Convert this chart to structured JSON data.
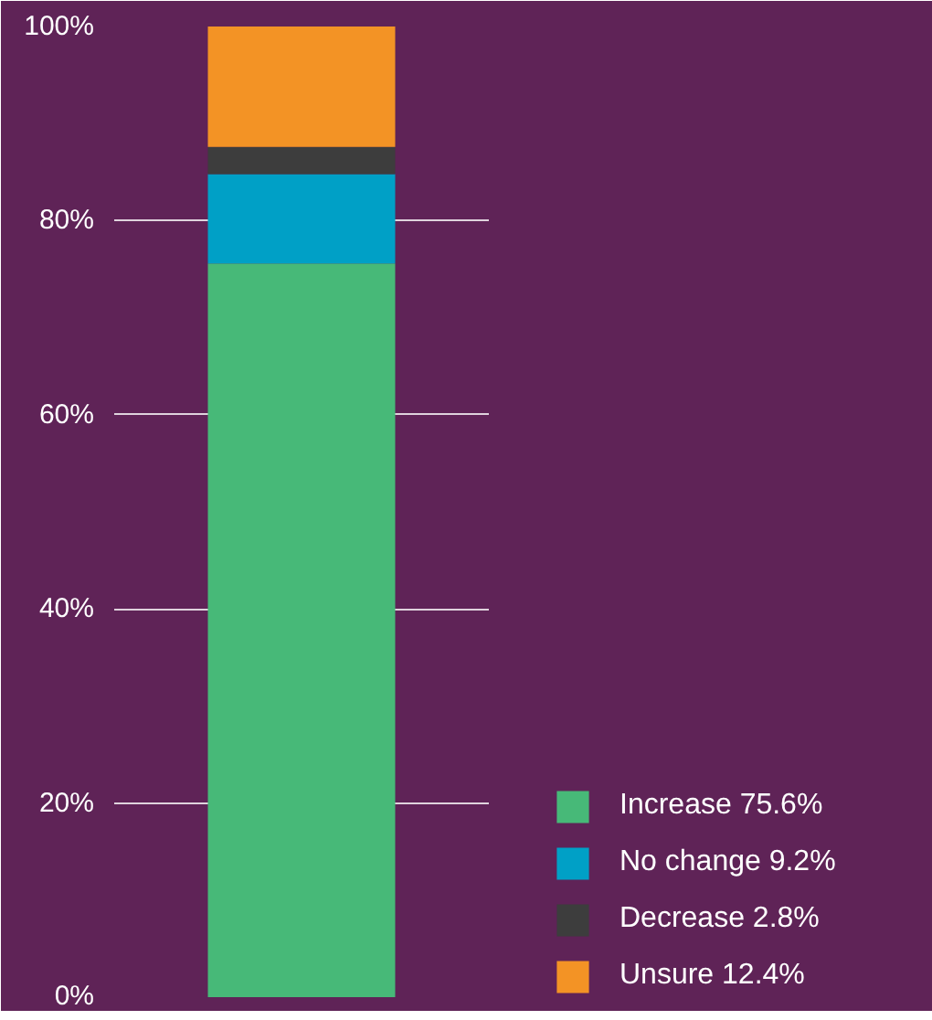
{
  "chart_data": {
    "type": "bar",
    "stacked": true,
    "categories": [
      null
    ],
    "series": [
      {
        "name": "Increase 75.6%",
        "color": "#47b978",
        "values": [
          75.6
        ]
      },
      {
        "name": "No change 9.2%",
        "color": "#00a0c6",
        "values": [
          9.2
        ]
      },
      {
        "name": "Decrease 2.8%",
        "color": "#3d3d3d",
        "values": [
          2.8
        ]
      },
      {
        "name": "Unsure 12.4%",
        "color": "#f39325",
        "values": [
          12.4
        ]
      }
    ],
    "ylim": [
      0,
      100
    ],
    "yticks": [
      {
        "value": 0,
        "label": "0%"
      },
      {
        "value": 20,
        "label": "20%"
      },
      {
        "value": 40,
        "label": "40%"
      },
      {
        "value": 60,
        "label": "60%"
      },
      {
        "value": 80,
        "label": "80%"
      },
      {
        "value": 100,
        "label": "100%"
      }
    ],
    "grid": "y",
    "legend": "bottom right",
    "tick_labels": "y"
  }
}
